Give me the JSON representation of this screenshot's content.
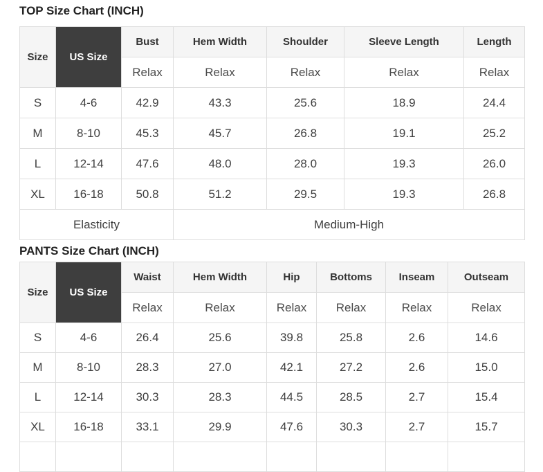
{
  "colors": {
    "dark_header_bg": "#3e3e3e",
    "dark_header_text": "#ffffff",
    "header_bg": "#f5f5f5",
    "border": "#dddddd",
    "heading_text": "#222222",
    "cell_text": "#3f3f3f"
  },
  "top_chart": {
    "title": "TOP Size Chart (INCH)",
    "size_col_label": "Size",
    "us_size_col_label": "US Size",
    "measure_columns": [
      {
        "label": "Bust",
        "fit": "Relax"
      },
      {
        "label": "Hem Width",
        "fit": "Relax"
      },
      {
        "label": "Shoulder",
        "fit": "Relax"
      },
      {
        "label": "Sleeve Length",
        "fit": "Relax"
      },
      {
        "label": "Length",
        "fit": "Relax"
      }
    ],
    "rows": [
      {
        "size": "S",
        "us_size": "4-6",
        "values": [
          "42.9",
          "43.3",
          "25.6",
          "18.9",
          "24.4"
        ]
      },
      {
        "size": "M",
        "us_size": "8-10",
        "values": [
          "45.3",
          "45.7",
          "26.8",
          "19.1",
          "25.2"
        ]
      },
      {
        "size": "L",
        "us_size": "12-14",
        "values": [
          "47.6",
          "48.0",
          "28.0",
          "19.3",
          "26.0"
        ]
      },
      {
        "size": "XL",
        "us_size": "16-18",
        "values": [
          "50.8",
          "51.2",
          "29.5",
          "19.3",
          "26.8"
        ]
      }
    ],
    "footer": {
      "label": "Elasticity",
      "value": "Medium-High"
    }
  },
  "pants_chart": {
    "title": "PANTS Size Chart (INCH)",
    "size_col_label": "Size",
    "us_size_col_label": "US Size",
    "measure_columns": [
      {
        "label": "Waist",
        "fit": "Relax"
      },
      {
        "label": "Hem Width",
        "fit": "Relax"
      },
      {
        "label": "Hip",
        "fit": "Relax"
      },
      {
        "label": "Bottoms",
        "fit": "Relax"
      },
      {
        "label": "Inseam",
        "fit": "Relax"
      },
      {
        "label": "Outseam",
        "fit": "Relax"
      }
    ],
    "rows": [
      {
        "size": "S",
        "us_size": "4-6",
        "values": [
          "26.4",
          "25.6",
          "39.8",
          "25.8",
          "2.6",
          "14.6"
        ]
      },
      {
        "size": "M",
        "us_size": "8-10",
        "values": [
          "28.3",
          "27.0",
          "42.1",
          "27.2",
          "2.6",
          "15.0"
        ]
      },
      {
        "size": "L",
        "us_size": "12-14",
        "values": [
          "30.3",
          "28.3",
          "44.5",
          "28.5",
          "2.7",
          "15.4"
        ]
      },
      {
        "size": "XL",
        "us_size": "16-18",
        "values": [
          "33.1",
          "29.9",
          "47.6",
          "30.3",
          "2.7",
          "15.7"
        ]
      }
    ],
    "clipped_bottom_row": true
  }
}
